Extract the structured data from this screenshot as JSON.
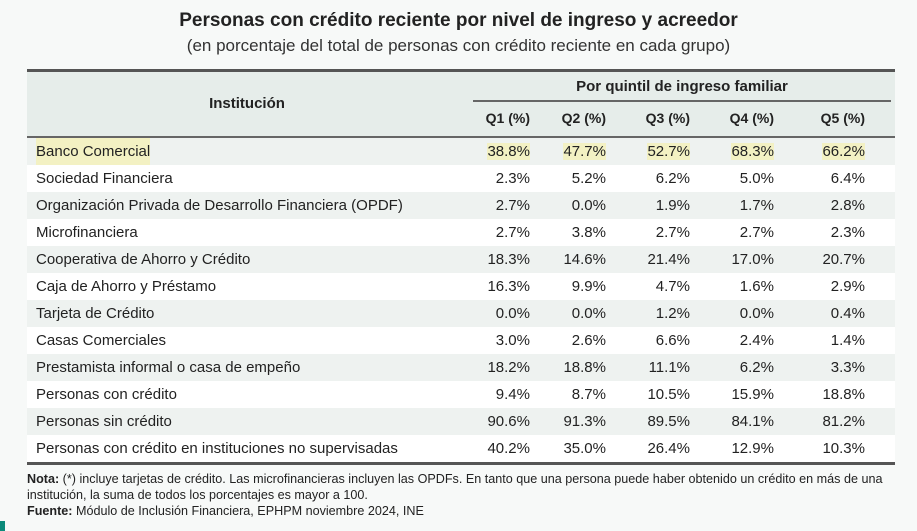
{
  "title": "Personas con crédito reciente por nivel de ingreso y acreedor",
  "subtitle": "(en porcentaje del total de personas con crédito reciente en cada grupo)",
  "table": {
    "institution_header": "Institución",
    "group_header": "Por quintil de ingreso familiar",
    "columns": [
      "Q1 (%)",
      "Q2 (%)",
      "Q3 (%)",
      "Q4 (%)",
      "Q5 (%)"
    ],
    "highlight_color": "#f3f1c3",
    "rows": [
      {
        "label": "Banco Comercial",
        "values": [
          "38.8%",
          "47.7%",
          "52.7%",
          "68.3%",
          "66.2%"
        ],
        "highlighted": true
      },
      {
        "label": "Sociedad Financiera",
        "values": [
          "2.3%",
          "5.2%",
          "6.2%",
          "5.0%",
          "6.4%"
        ]
      },
      {
        "label": "Organización Privada de Desarrollo Financiera (OPDF)",
        "values": [
          "2.7%",
          "0.0%",
          "1.9%",
          "1.7%",
          "2.8%"
        ]
      },
      {
        "label": "Microfinanciera",
        "values": [
          "2.7%",
          "3.8%",
          "2.7%",
          "2.7%",
          "2.3%"
        ]
      },
      {
        "label": "Cooperativa de Ahorro y Crédito",
        "values": [
          "18.3%",
          "14.6%",
          "21.4%",
          "17.0%",
          "20.7%"
        ]
      },
      {
        "label": "Caja de Ahorro y Préstamo",
        "values": [
          "16.3%",
          "9.9%",
          "4.7%",
          "1.6%",
          "2.9%"
        ]
      },
      {
        "label": "Tarjeta de Crédito",
        "values": [
          "0.0%",
          "0.0%",
          "1.2%",
          "0.0%",
          "0.4%"
        ]
      },
      {
        "label": "Casas Comerciales",
        "values": [
          "3.0%",
          "2.6%",
          "6.6%",
          "2.4%",
          "1.4%"
        ]
      },
      {
        "label": "Prestamista informal o casa de empeño",
        "values": [
          "18.2%",
          "18.8%",
          "11.1%",
          "6.2%",
          "3.3%"
        ]
      },
      {
        "label": "Personas con crédito",
        "values": [
          "9.4%",
          "8.7%",
          "10.5%",
          "15.9%",
          "18.8%"
        ]
      },
      {
        "label": "Personas sin crédito",
        "values": [
          "90.6%",
          "91.3%",
          "89.5%",
          "84.1%",
          "81.2%"
        ]
      },
      {
        "label": "Personas con crédito en instituciones no supervisadas",
        "values": [
          "40.2%",
          "35.0%",
          "26.4%",
          "12.9%",
          "10.3%"
        ]
      }
    ]
  },
  "note": {
    "note_label": "Nota:",
    "note_text": " (*) incluye tarjetas de crédito. Las microfinancieras incluyen las OPDFs. En tanto que una persona puede haber obtenido un crédito en más de una institución, la suma de todos los porcentajes es mayor a 100.",
    "source_label": "Fuente:",
    "source_text": " Módulo de Inclusión Financiera, EPHPM noviembre 2024, INE"
  }
}
